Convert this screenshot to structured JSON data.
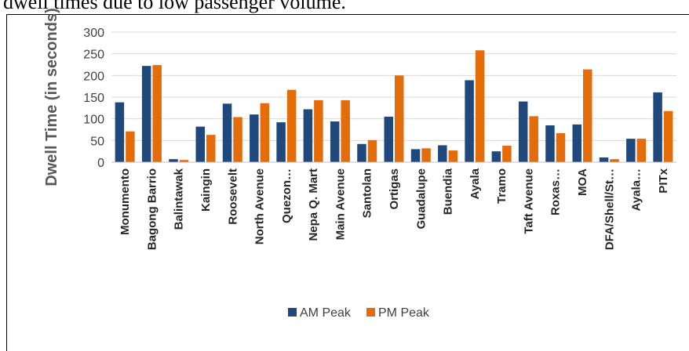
{
  "page": {
    "top_text": "dwell times due to low passenger volume."
  },
  "chart_data": {
    "type": "bar",
    "title": "",
    "xlabel": "",
    "ylabel": "Dwell Time (in seconds)",
    "ylim": [
      0,
      300
    ],
    "yticks": [
      0,
      50,
      100,
      150,
      200,
      250,
      300
    ],
    "grid": true,
    "legend_position": "bottom",
    "categories": [
      "Monumento",
      "Bagong Barrio",
      "Balintawak",
      "Kaingin",
      "Roosevelt",
      "North Avenue",
      "Quezon…",
      "Nepa Q. Mart",
      "Main Avenue",
      "Santolan",
      "Ortigas",
      "Guadalupe",
      "Buendia",
      "Ayala",
      "Tramo",
      "Taft Avenue",
      "Roxas…",
      "MOA",
      "DFA/Shell/St…",
      "Ayala…",
      "PITx"
    ],
    "series": [
      {
        "name": "AM Peak",
        "color": "#1f497d",
        "values": [
          138,
          222,
          7,
          82,
          135,
          110,
          92,
          122,
          94,
          42,
          105,
          30,
          39,
          189,
          25,
          140,
          85,
          87,
          11,
          54,
          161
        ]
      },
      {
        "name": "PM Peak",
        "color": "#e46c0a",
        "values": [
          71,
          224,
          5,
          63,
          104,
          136,
          167,
          143,
          143,
          51,
          200,
          32,
          27,
          258,
          38,
          106,
          67,
          214,
          7,
          54,
          118
        ]
      }
    ]
  }
}
